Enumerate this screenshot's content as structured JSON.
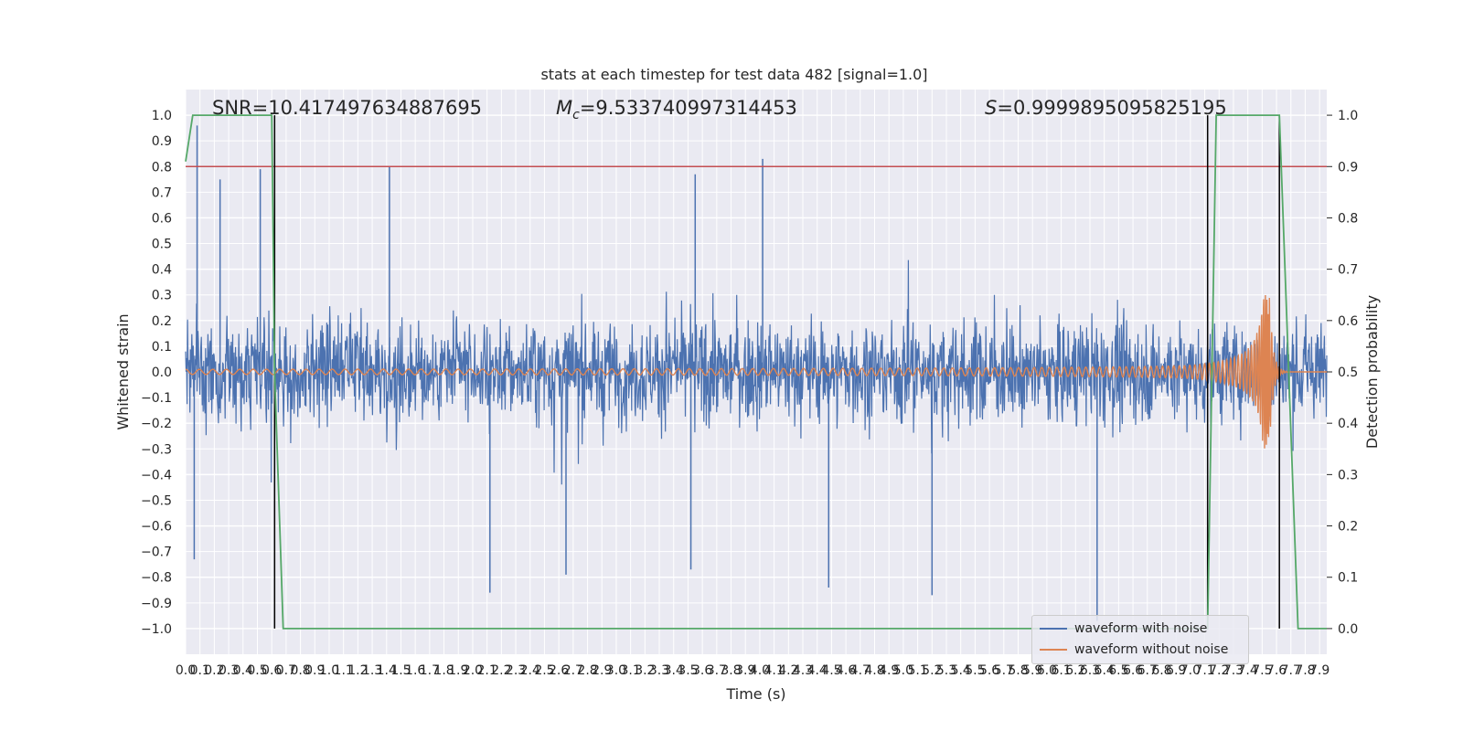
{
  "chart_data": {
    "type": "line",
    "title": "stats at each timestep for test data 482 [signal=1.0]",
    "xlabel": "Time (s)",
    "ylabel": "Whitened strain",
    "y2label": "Detection probability",
    "xlim": [
      0.0,
      7.95
    ],
    "ylim": [
      -1.1,
      1.1
    ],
    "y2lim": [
      -0.05,
      1.05
    ],
    "grid": true,
    "legend_position": "lower-right",
    "x_ticks": [
      "0.0",
      "0.1",
      "0.2",
      "0.3",
      "0.4",
      "0.5",
      "0.6",
      "0.7",
      "0.8",
      "0.9",
      "1.0",
      "1.1",
      "1.2",
      "1.3",
      "1.4",
      "1.5",
      "1.6",
      "1.7",
      "1.8",
      "1.9",
      "2.0",
      "2.1",
      "2.2",
      "2.3",
      "2.4",
      "2.5",
      "2.6",
      "2.7",
      "2.8",
      "2.9",
      "3.0",
      "3.1",
      "3.2",
      "3.3",
      "3.4",
      "3.5",
      "3.6",
      "3.7",
      "3.8",
      "3.9",
      "4.0",
      "4.1",
      "4.2",
      "4.3",
      "4.4",
      "4.5",
      "4.6",
      "4.7",
      "4.8",
      "4.9",
      "5.0",
      "5.1",
      "5.2",
      "5.3",
      "5.4",
      "5.5",
      "5.6",
      "5.7",
      "5.8",
      "5.9",
      "6.0",
      "6.1",
      "6.2",
      "6.3",
      "6.4",
      "6.5",
      "6.6",
      "6.7",
      "6.8",
      "6.9",
      "7.0",
      "7.1",
      "7.2",
      "7.3",
      "7.4",
      "7.5",
      "7.6",
      "7.7",
      "7.8",
      "7.9"
    ],
    "y_ticks": [
      "−1.0",
      "−0.9",
      "−0.8",
      "−0.7",
      "−0.6",
      "−0.5",
      "−0.4",
      "−0.3",
      "−0.2",
      "−0.1",
      "0.0",
      "0.1",
      "0.2",
      "0.3",
      "0.4",
      "0.5",
      "0.6",
      "0.7",
      "0.8",
      "0.9",
      "1.0"
    ],
    "y2_ticks": [
      "0.0",
      "0.1",
      "0.2",
      "0.3",
      "0.4",
      "0.5",
      "0.6",
      "0.7",
      "0.8",
      "0.9",
      "1.0"
    ],
    "annotations": {
      "snr": "SNR=10.417497634887695",
      "mc_symbol": "M",
      "mc_sub": "c",
      "mc_value": "=9.533740997314453",
      "s_symbol": "S",
      "s_value": "=0.9999895095825195"
    },
    "threshold_y2": 0.9,
    "vertical_lines_x": [
      0.62,
      7.12,
      7.62
    ],
    "series": [
      {
        "name": "waveform with noise",
        "color": "#4c72b0",
        "note_type": "noise",
        "amplitude_envelope": 0.3,
        "peaks": [
          {
            "x": 0.08,
            "y": 0.96
          },
          {
            "x": 0.24,
            "y": 0.75
          },
          {
            "x": 0.52,
            "y": 0.79
          },
          {
            "x": 1.42,
            "y": 0.8
          },
          {
            "x": 3.55,
            "y": 0.77
          },
          {
            "x": 4.02,
            "y": 0.83
          },
          {
            "x": 0.06,
            "y": -0.73
          },
          {
            "x": 2.12,
            "y": -0.86
          },
          {
            "x": 2.65,
            "y": -0.79
          },
          {
            "x": 3.52,
            "y": -0.77
          },
          {
            "x": 4.48,
            "y": -0.84
          },
          {
            "x": 5.2,
            "y": -0.87
          },
          {
            "x": 6.35,
            "y": -0.97
          }
        ]
      },
      {
        "name": "waveform without noise",
        "color": "#dd8452",
        "note_type": "chirp",
        "merger_x": 7.55,
        "amplitude_start": 0.01,
        "amplitude_peak": 0.3
      },
      {
        "name": "",
        "color": "#55a868",
        "axis": "y2",
        "x": [
          0.0,
          0.05,
          0.08,
          0.12,
          0.6,
          0.62,
          0.68,
          7.12,
          7.18,
          7.62,
          7.75,
          7.95
        ],
        "y": [
          0.91,
          1.0,
          1.0,
          1.0,
          1.0,
          0.5,
          0.0,
          0.0,
          1.0,
          1.0,
          0.0,
          0.0
        ]
      }
    ],
    "threshold_color": "#c44e52"
  },
  "legend": {
    "item1": "waveform with noise",
    "item2": "waveform without noise"
  }
}
